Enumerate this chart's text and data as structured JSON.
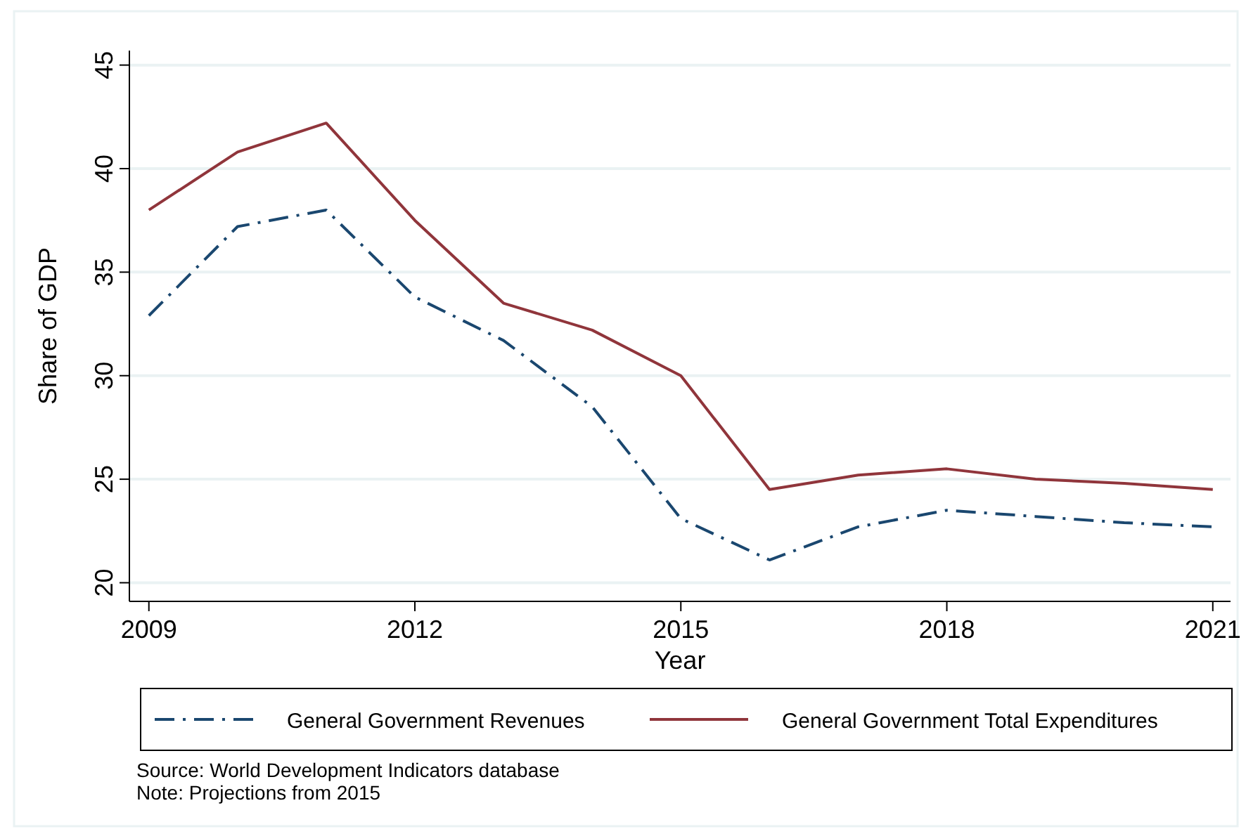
{
  "chart_data": {
    "type": "line",
    "xlabel": "Year",
    "ylabel": "Share of GDP",
    "x": [
      2009,
      2010,
      2011,
      2012,
      2013,
      2014,
      2015,
      2016,
      2017,
      2018,
      2019,
      2020,
      2021
    ],
    "series": [
      {
        "name": "General Government Revenues",
        "color": "#1a476f",
        "line_style": "dashed",
        "values": [
          32.9,
          37.2,
          38.0,
          33.8,
          31.7,
          28.5,
          23.1,
          21.1,
          22.7,
          23.5,
          23.2,
          22.9,
          22.7
        ]
      },
      {
        "name": "General Government Total Expenditures",
        "color": "#90353b",
        "line_style": "solid",
        "values": [
          38.0,
          40.8,
          42.2,
          37.5,
          33.5,
          32.2,
          30.0,
          24.5,
          25.2,
          25.5,
          25.0,
          24.8,
          24.5
        ]
      }
    ],
    "xlim": [
      2008.78,
      2021.2
    ],
    "ylim": [
      19.1,
      45.7
    ],
    "xticks": [
      2009,
      2012,
      2015,
      2018,
      2021
    ],
    "yticks": [
      20,
      25,
      30,
      35,
      40,
      45
    ],
    "grid": "y",
    "legend": "bottom",
    "marker": "none",
    "annotations": [
      "Source: World Development Indicators database",
      "Note: Projections from 2015"
    ]
  }
}
